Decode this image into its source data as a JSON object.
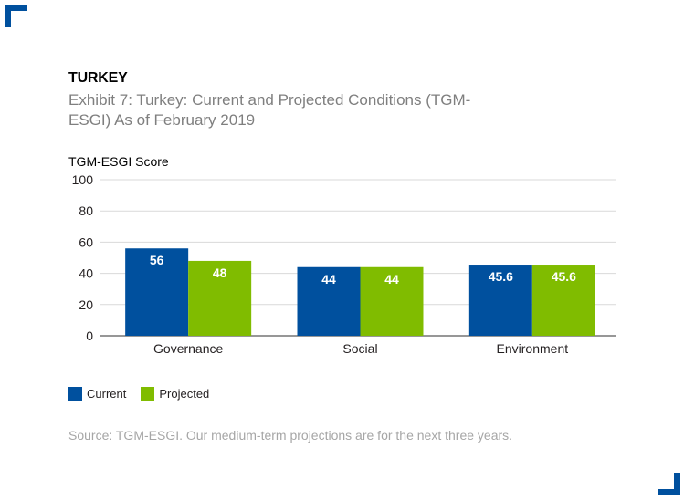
{
  "header": {
    "kicker": "TURKEY",
    "title": "Exhibit 7: Turkey: Current and Projected Conditions (TGM-ESGI) As of February 2019"
  },
  "colors": {
    "brand": "#00509e",
    "current": "#00509e",
    "projected": "#80bc00",
    "grid": "#d9d9d9",
    "axis": "#595959"
  },
  "chart_data": {
    "type": "bar",
    "title": "Exhibit 7: Turkey: Current and Projected Conditions (TGM-ESGI) As of February 2019",
    "ylabel": "TGM-ESGI Score",
    "xlabel": "",
    "ylim": [
      0,
      100
    ],
    "yticks": [
      0,
      20,
      40,
      60,
      80,
      100
    ],
    "categories": [
      "Governance",
      "Social",
      "Environment"
    ],
    "series": [
      {
        "name": "Current",
        "values": [
          56,
          44,
          45.6
        ],
        "labels": [
          "56",
          "44",
          "45.6"
        ]
      },
      {
        "name": "Projected",
        "values": [
          48,
          44,
          45.6
        ],
        "labels": [
          "48",
          "44",
          "45.6"
        ]
      }
    ],
    "grid": true,
    "legend": "bottom-left"
  },
  "legend": {
    "current_label": "Current",
    "projected_label": "Projected"
  },
  "source": "Source: TGM-ESGI. Our medium-term projections are for the next three years."
}
